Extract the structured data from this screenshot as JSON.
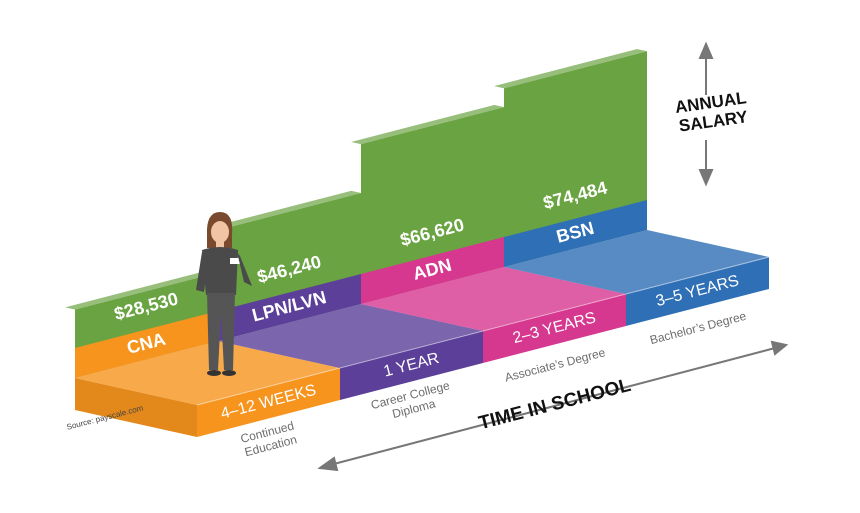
{
  "chart_data": {
    "type": "bar",
    "categories": [
      "CNA",
      "LPN/LVN",
      "ADN",
      "BSN"
    ],
    "values": [
      28530,
      46240,
      66620,
      74484
    ],
    "value_labels": [
      "$28,530",
      "$46,240",
      "$66,620",
      "$74,484"
    ],
    "durations": [
      "4–12 WEEKS",
      "1 YEAR",
      "2–3 YEARS",
      "3–5 YEARS"
    ],
    "programs": [
      "Continued Education",
      "Career College Diploma",
      "Associate’s Degree",
      "Bachelor’s Degree"
    ],
    "colors": [
      "#f7941d",
      "#5b3f99",
      "#d6378f",
      "#2f6fb6"
    ],
    "color": "#6aa341",
    "y_label": "ANNUAL SALARY",
    "x_label": "TIME IN SCHOOL",
    "source": "Source: payscale.com"
  }
}
